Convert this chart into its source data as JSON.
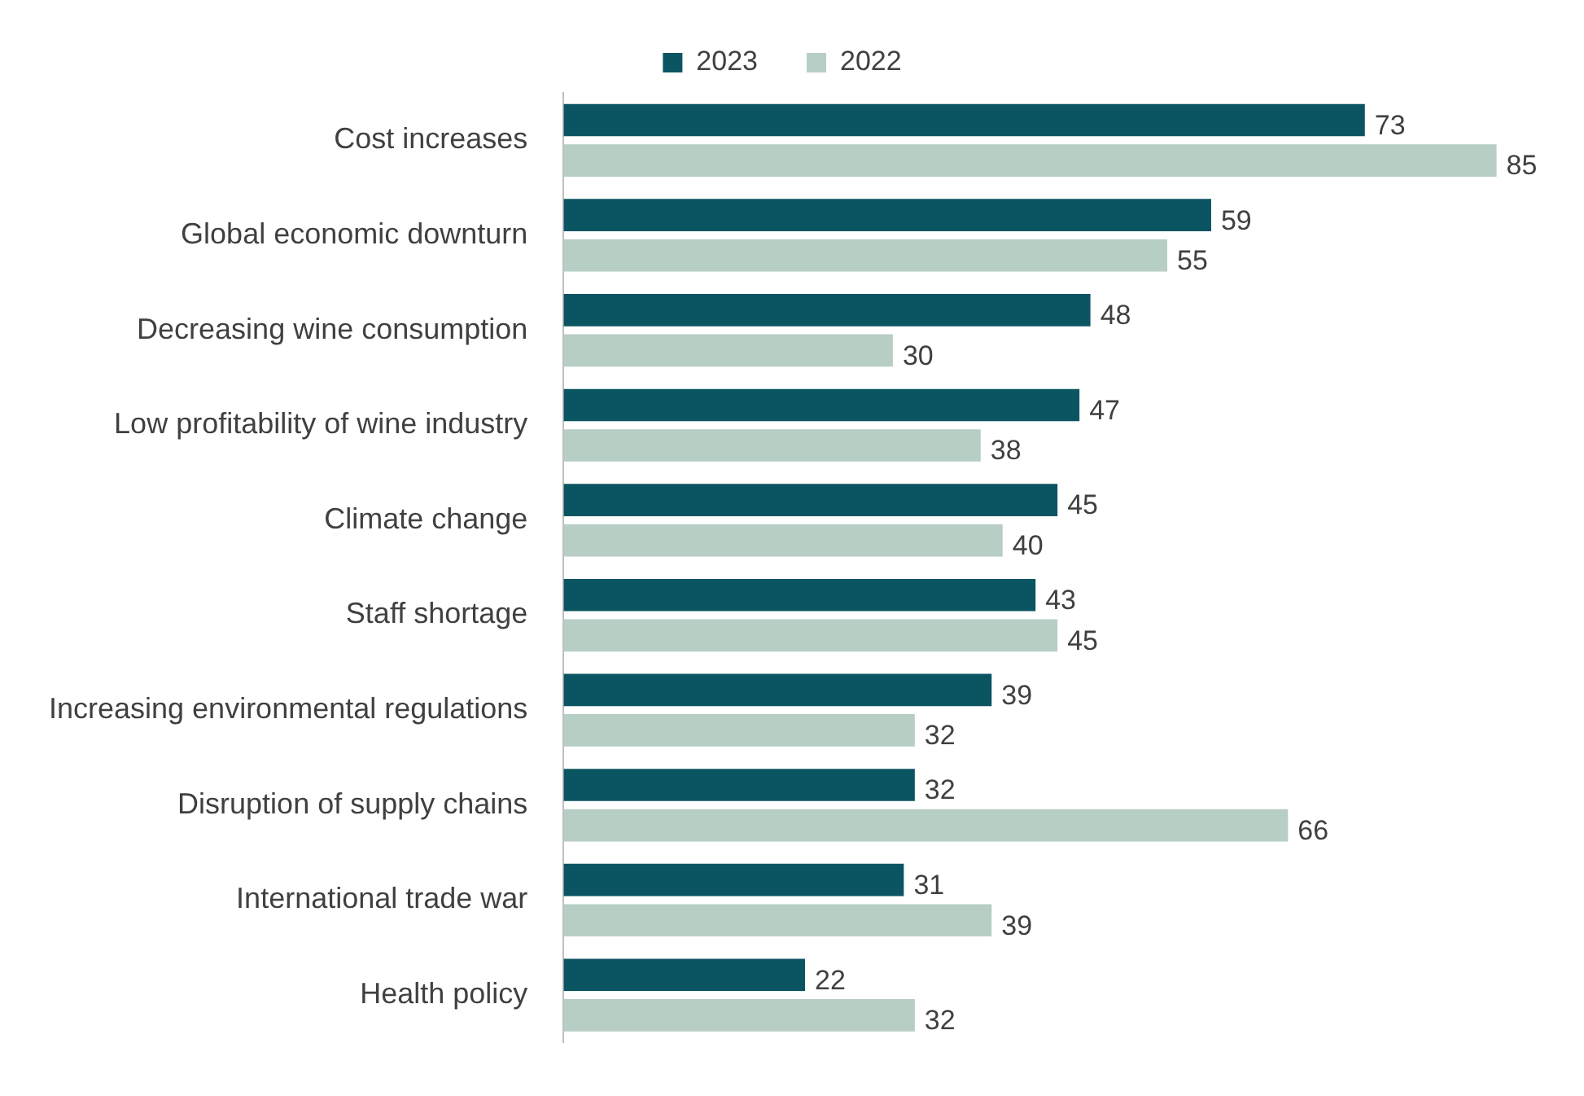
{
  "chart_data": {
    "type": "bar",
    "orientation": "horizontal",
    "categories": [
      "Cost increases",
      "Global economic downturn",
      "Decreasing wine consumption",
      "Low profitability of wine industry",
      "Climate change",
      "Staff shortage",
      "Increasing environmental regulations",
      "Disruption of supply chains",
      "International trade war",
      "Health policy"
    ],
    "series": [
      {
        "name": "2023",
        "color": "#0b5562",
        "values": [
          73,
          59,
          48,
          47,
          45,
          43,
          39,
          32,
          31,
          22
        ]
      },
      {
        "name": "2022",
        "color": "#b7cec4",
        "values": [
          85,
          55,
          30,
          38,
          40,
          45,
          32,
          66,
          39,
          32
        ]
      }
    ],
    "data_labels": true,
    "legend": "top",
    "grid": false
  }
}
